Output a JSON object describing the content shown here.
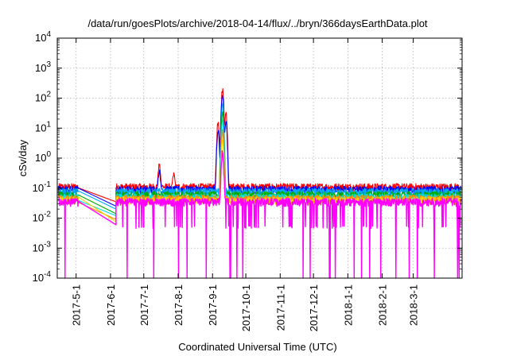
{
  "chart_data": {
    "type": "line",
    "title": "/data/run/goesPlots/archive/2018-04-14/flux/../bryn/366daysEarthData.plot",
    "xlabel": "Coordinated Universal Time (UTC)",
    "ylabel": "cSv/day",
    "yscale": "log",
    "xlim": [
      "2017-04-14",
      "2018-04-14"
    ],
    "ylim": [
      0.0001,
      10000
    ],
    "grid": true,
    "y_ticks": [
      {
        "value": 0.0001,
        "base": "10",
        "exp": "-4"
      },
      {
        "value": 0.001,
        "base": "10",
        "exp": "-3"
      },
      {
        "value": 0.01,
        "base": "10",
        "exp": "-2"
      },
      {
        "value": 0.1,
        "base": "10",
        "exp": "-1"
      },
      {
        "value": 1,
        "base": "10",
        "exp": "0"
      },
      {
        "value": 10,
        "base": "10",
        "exp": "1"
      },
      {
        "value": 100,
        "base": "10",
        "exp": "2"
      },
      {
        "value": 1000,
        "base": "10",
        "exp": "3"
      },
      {
        "value": 10000,
        "base": "10",
        "exp": "4"
      }
    ],
    "x_ticks": [
      "2017-5-1",
      "2017-6-1",
      "2017-7-1",
      "2017-8-1",
      "2017-9-1",
      "2017-10-1",
      "2017-11-1",
      "2017-12-1",
      "2018-1-1",
      "2018-2-1",
      "2018-3-1"
    ],
    "data_gap": [
      "2017-05-03",
      "2017-06-06"
    ],
    "series": [
      {
        "color": "#ff0000",
        "baseline": 0.11,
        "gap_level": 0.035,
        "spikes": [
          {
            "x": "2017-07-15",
            "y": 0.7
          },
          {
            "x": "2017-07-28",
            "y": 0.35
          },
          {
            "x": "2017-09-06",
            "y": 20
          },
          {
            "x": "2017-09-10",
            "y": 250
          },
          {
            "x": "2017-09-13",
            "y": 40
          }
        ]
      },
      {
        "color": "#0000ff",
        "baseline": 0.09,
        "gap_level": 0.025,
        "spikes": [
          {
            "x": "2017-07-15",
            "y": 0.45
          },
          {
            "x": "2017-09-06",
            "y": 10
          },
          {
            "x": "2017-09-10",
            "y": 150
          },
          {
            "x": "2017-09-13",
            "y": 20
          }
        ]
      },
      {
        "color": "#00aaff",
        "baseline": 0.075,
        "gap_level": 0.02,
        "spikes": [
          {
            "x": "2017-09-10",
            "y": 80
          }
        ]
      },
      {
        "color": "#00aa00",
        "baseline": 0.06,
        "gap_level": 0.014,
        "spikes": [
          {
            "x": "2017-09-10",
            "y": 40
          }
        ]
      },
      {
        "color": "#00dddd",
        "baseline": 0.05,
        "gap_level": 0.012,
        "spikes": [
          {
            "x": "2017-09-10",
            "y": 20
          }
        ]
      },
      {
        "color": "#ff8800",
        "baseline": 0.045,
        "gap_level": 0.009,
        "spikes": [
          {
            "x": "2017-09-10",
            "y": 10
          }
        ]
      },
      {
        "color": "#ffcc00",
        "baseline": 0.04,
        "gap_level": 0.0075,
        "spikes": [
          {
            "x": "2017-09-10",
            "y": 6
          }
        ]
      },
      {
        "color": "#ff00ff",
        "baseline": 0.035,
        "gap_level": 0.006,
        "floor": 0.005,
        "spikes": [
          {
            "x": "2017-09-10",
            "y": 2
          }
        ]
      }
    ]
  }
}
